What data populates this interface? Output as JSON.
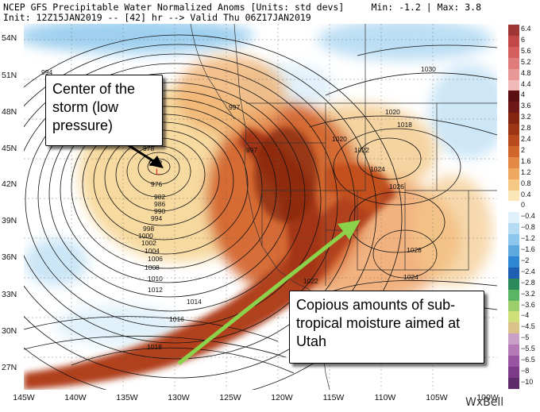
{
  "header": {
    "line1": "NCEP GFS Precipitable Water Normalized Anoms [Units: std devs]",
    "line2": "Init: 12Z15JAN2019 -- [42] hr --> Valid Thu 06Z17JAN2019",
    "minmax": "Min: -1.2 | Max: 3.8"
  },
  "axes": {
    "lat": [
      "54N",
      "51N",
      "48N",
      "45N",
      "42N",
      "39N",
      "36N",
      "33N",
      "30N",
      "27N"
    ],
    "lon": [
      "145W",
      "140W",
      "135W",
      "130W",
      "125W",
      "120W",
      "115W",
      "110W",
      "105W",
      "100W"
    ]
  },
  "isobars": [
    "994",
    "997",
    "972",
    "978",
    "976",
    "982",
    "986",
    "990",
    "994",
    "998",
    "1000",
    "1002",
    "1004",
    "1006",
    "1008",
    "1010",
    "1012",
    "1014",
    "1016",
    "1018",
    "997",
    "1020",
    "1018",
    "1022",
    "1020",
    "1024",
    "1026",
    "1028",
    "1024",
    "1022",
    "1030"
  ],
  "low_marker": "L",
  "colorbar": {
    "labels": [
      "6.4",
      "6",
      "5.6",
      "5.2",
      "4.8",
      "4.4",
      "4",
      "3.6",
      "3.2",
      "2.8",
      "2.4",
      "2",
      "1.6",
      "1.2",
      "0.8",
      "0.4",
      "0",
      "−0.4",
      "−0.8",
      "−1.2",
      "−1.6",
      "−2",
      "−2.4",
      "−2.8",
      "−3.2",
      "−3.6",
      "−4",
      "−4.5",
      "−5",
      "−5.5",
      "−6.5",
      "−8",
      "−10"
    ],
    "colors": [
      "#a03535",
      "#c24848",
      "#d55f5f",
      "#e07b7b",
      "#e99898",
      "#f2b9b9",
      "#5a1010",
      "#6e1818",
      "#842510",
      "#9c3513",
      "#b84a1e",
      "#d0662c",
      "#e48845",
      "#efa862",
      "#f5c884",
      "#fbe6b8",
      "#ffffff",
      "#e0f0fb",
      "#b6dcf4",
      "#8cc6ec",
      "#5ea8e0",
      "#2f86d3",
      "#1e5fb3",
      "#2a8a5a",
      "#5ab565",
      "#9ccf6b",
      "#cfe07a",
      "#d9c38a",
      "#c9a1c8",
      "#b57ab6",
      "#9a55a2",
      "#7d3a88",
      "#5d2a6a"
    ]
  },
  "annotations": {
    "storm": "Center of the storm (low pressure)",
    "moisture": "Copious amounts of sub-tropical moisture aimed at Utah"
  },
  "brand": "WxBell",
  "colors": {
    "arrow": "#8cd24a"
  }
}
